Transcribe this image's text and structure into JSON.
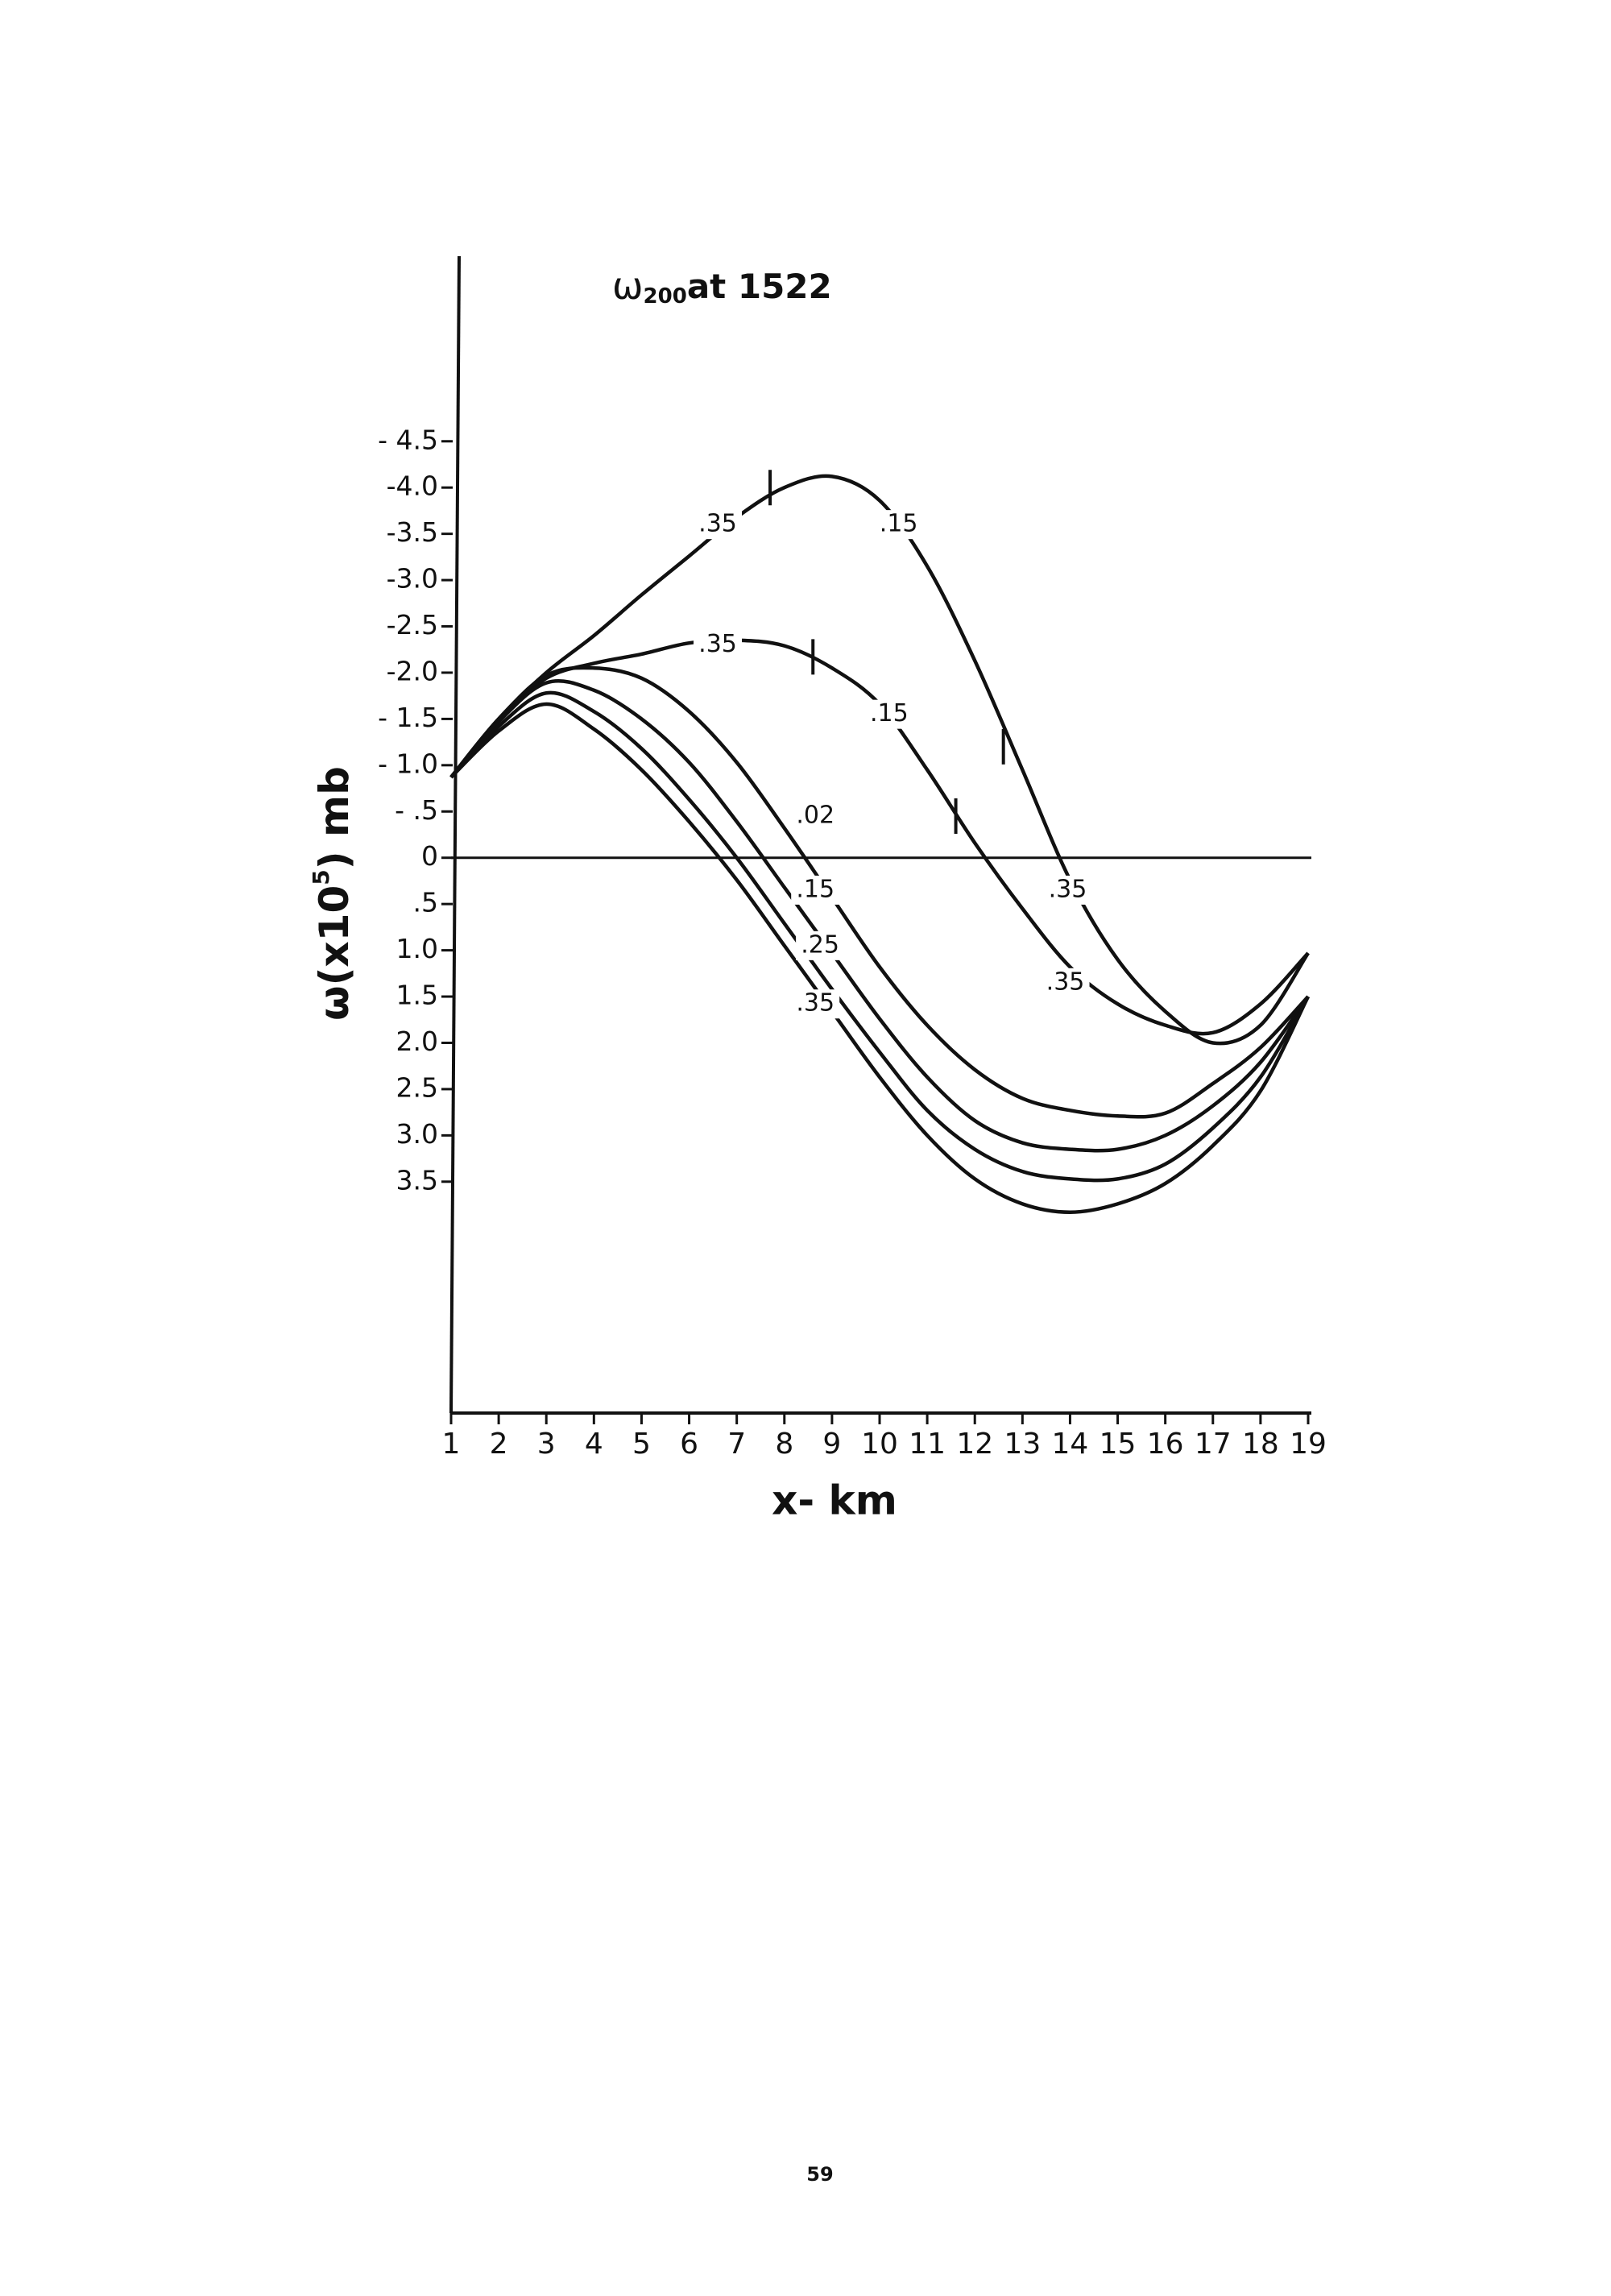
{
  "chart_data": {
    "type": "line",
    "title": {
      "symbol": "ω",
      "subscript": "200",
      "text": "at 1522"
    },
    "ylabel": {
      "text": "ω(x10",
      "superscript": "5",
      "unit": ") mb"
    },
    "xlabel": "x- km",
    "x": [
      1,
      2,
      3,
      4,
      5,
      6,
      7,
      8,
      9,
      10,
      11,
      12,
      13,
      14,
      15,
      16,
      17,
      18,
      19
    ],
    "xlim": [
      1,
      19
    ],
    "xticks": [
      1,
      2,
      3,
      4,
      5,
      6,
      7,
      8,
      9,
      10,
      11,
      12,
      13,
      14,
      15,
      16,
      17,
      18,
      19
    ],
    "ylim": [
      -6.5,
      6
    ],
    "y_inverted": true,
    "yticks": [
      {
        "value": -4.5,
        "label": "- 4.5"
      },
      {
        "value": -4.0,
        "label": "-4.0"
      },
      {
        "value": -3.5,
        "label": "-3.5"
      },
      {
        "value": -3.0,
        "label": "-3.0"
      },
      {
        "value": -2.5,
        "label": "-2.5"
      },
      {
        "value": -2.0,
        "label": "-2.0"
      },
      {
        "value": -1.5,
        "label": "- 1.5"
      },
      {
        "value": -1.0,
        "label": "- 1.0"
      },
      {
        "value": -0.5,
        "label": "- .5"
      },
      0,
      {
        "value": 0.5,
        "label": ".5"
      },
      {
        "value": 1.0,
        "label": "1.0"
      },
      {
        "value": 1.5,
        "label": "1.5"
      },
      {
        "value": 2.0,
        "label": "2.0"
      },
      {
        "value": 2.5,
        "label": "2.5"
      },
      {
        "value": 3.0,
        "label": "3.0"
      },
      {
        "value": 3.5,
        "label": "3.5"
      }
    ],
    "hline": 0,
    "series": [
      {
        "color": "#111",
        "labels": [
          ".35",
          ".15",
          ".35"
        ],
        "values": [
          -0.87,
          -1.5,
          -2.0,
          -2.4,
          -2.84,
          -3.26,
          -3.68,
          -4.0,
          -4.12,
          -3.86,
          -3.15,
          -2.13,
          -0.95,
          0.24,
          1.1,
          1.66,
          2.0,
          1.81,
          1.03
        ]
      },
      {
        "color": "#111",
        "labels": [
          ".35",
          ".15",
          ".35"
        ],
        "values": [
          -0.87,
          -1.5,
          -1.94,
          -2.1,
          -2.2,
          -2.32,
          -2.35,
          -2.29,
          -2.05,
          -1.66,
          -0.95,
          -0.16,
          0.55,
          1.18,
          1.58,
          1.81,
          1.89,
          1.58,
          1.03
        ]
      },
      {
        "color": "#111",
        "labels": [
          ".02"
        ],
        "values": [
          -0.87,
          -1.5,
          -1.97,
          -2.05,
          -1.94,
          -1.58,
          -1.03,
          -0.32,
          0.43,
          1.18,
          1.81,
          2.29,
          2.6,
          2.73,
          2.79,
          2.76,
          2.44,
          2.05,
          1.5
        ]
      },
      {
        "color": "#111",
        "labels": [
          ".15"
        ],
        "values": [
          -0.87,
          -1.47,
          -1.89,
          -1.81,
          -1.5,
          -1.03,
          -0.39,
          0.32,
          1.03,
          1.74,
          2.37,
          2.84,
          3.08,
          3.15,
          3.15,
          3.0,
          2.68,
          2.21,
          1.5
        ]
      },
      {
        "color": "#111",
        "labels": [
          ".25"
        ],
        "values": [
          -0.87,
          -1.42,
          -1.78,
          -1.58,
          -1.18,
          -0.63,
          0,
          0.71,
          1.42,
          2.1,
          2.73,
          3.15,
          3.39,
          3.47,
          3.47,
          3.31,
          2.92,
          2.37,
          1.5
        ]
      },
      {
        "color": "#111",
        "labels": [
          ".35"
        ],
        "values": [
          -0.87,
          -1.37,
          -1.66,
          -1.39,
          -0.95,
          -0.39,
          0.24,
          0.95,
          1.66,
          2.37,
          3.0,
          3.47,
          3.74,
          3.83,
          3.74,
          3.52,
          3.11,
          2.52,
          1.5
        ]
      }
    ],
    "page_number": "59"
  }
}
